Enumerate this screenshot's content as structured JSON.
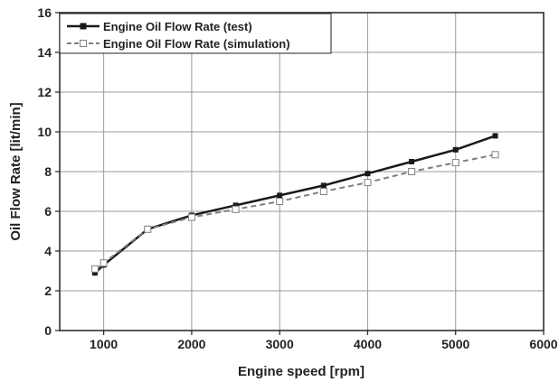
{
  "chart_data": {
    "type": "line",
    "xlabel": "Engine speed [rpm]",
    "ylabel": "Oil Flow Rate [lit/min]",
    "xlim": [
      500,
      6000
    ],
    "ylim": [
      0,
      16
    ],
    "xticks": [
      1000,
      2000,
      3000,
      4000,
      5000,
      6000
    ],
    "yticks": [
      0,
      2,
      4,
      6,
      8,
      10,
      12,
      14,
      16
    ],
    "grid": true,
    "legend_position": "top-left",
    "series": [
      {
        "name": "Engine Oil Flow Rate (test)",
        "color": "#1a1a1a",
        "line_style": "solid",
        "marker": "filled-square",
        "x": [
          900,
          1000,
          1500,
          2000,
          2500,
          3000,
          3500,
          4000,
          4500,
          5000,
          5450
        ],
        "y": [
          2.9,
          3.3,
          5.1,
          5.8,
          6.3,
          6.8,
          7.3,
          7.9,
          8.5,
          9.1,
          9.8
        ]
      },
      {
        "name": "Engine Oil Flow Rate (simulation)",
        "color": "#808080",
        "line_style": "dashed",
        "marker": "open-square",
        "x": [
          900,
          1000,
          1500,
          2000,
          2500,
          3000,
          3500,
          4000,
          4500,
          5000,
          5450
        ],
        "y": [
          3.1,
          3.4,
          5.1,
          5.7,
          6.1,
          6.5,
          7.0,
          7.45,
          8.0,
          8.45,
          8.85
        ]
      }
    ]
  }
}
